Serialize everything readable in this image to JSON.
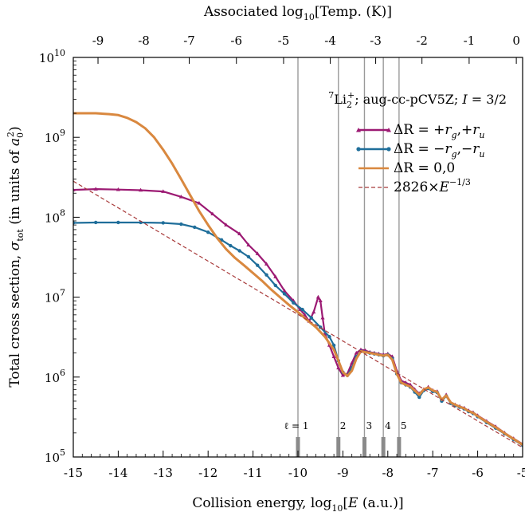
{
  "chart_data": {
    "type": "line",
    "annotation": "⁷Li₂⁺; aug-cc-pCV5Z; I = 3/2",
    "xlabel": "Collision energy, log₁₀[E (a.u.)]",
    "ylabel": "Total cross section, σ_tot (in units of a₀²)",
    "top_xlabel": "Associated log₁₀[Temp. (K)]",
    "xlim": [
      -15,
      -5
    ],
    "ylim": [
      100000,
      10000000000
    ],
    "yscale": "log",
    "grid": false,
    "legend_position": "upper-right",
    "x_ticks": [
      "-15",
      "-14",
      "-13",
      "-12",
      "-11",
      "-10",
      "-9",
      "-8",
      "-7",
      "-6",
      "-5"
    ],
    "y_ticks": [
      {
        "value": 100000,
        "base": "10",
        "exp": "5"
      },
      {
        "value": 1000000,
        "base": "10",
        "exp": "6"
      },
      {
        "value": 10000000,
        "base": "10",
        "exp": "7"
      },
      {
        "value": 100000000,
        "base": "10",
        "exp": "8"
      },
      {
        "value": 1000000000,
        "base": "10",
        "exp": "9"
      },
      {
        "value": 10000000000,
        "base": "10",
        "exp": "10"
      }
    ],
    "top_x_ticks": [
      "-9",
      "-8",
      "-7",
      "-6",
      "-5",
      "-4",
      "-3",
      "-2",
      "-1",
      "0"
    ],
    "top_x_tick_positions": [
      -14.45,
      -13.43,
      -12.42,
      -11.37,
      -10.32,
      -9.28,
      -8.27,
      -7.24,
      -6.19,
      -5.14
    ],
    "partial_wave_thresholds": [
      {
        "label": "ℓ = 1",
        "x": -10.0
      },
      {
        "label": "2",
        "x": -9.1
      },
      {
        "label": "3",
        "x": -8.52
      },
      {
        "label": "4",
        "x": -8.1
      },
      {
        "label": "5",
        "x": -7.75
      }
    ],
    "series": [
      {
        "name": "ΔR = +r_g,+r_u",
        "legend": {
          "lhs": "ΔR = +",
          "parts": [
            [
              "r",
              "g"
            ],
            [
              "r",
              "u"
            ]
          ],
          "sep": ",+"
        },
        "color": "#9c1a73",
        "marker": "triangle",
        "x": [
          -15,
          -14.5,
          -14,
          -13.5,
          -13,
          -12.6,
          -12.2,
          -11.9,
          -11.6,
          -11.3,
          -11.1,
          -10.9,
          -10.7,
          -10.5,
          -10.3,
          -10.1,
          -9.95,
          -9.85,
          -9.75,
          -9.65,
          -9.55,
          -9.5,
          -9.45,
          -9.4,
          -9.3,
          -9.2,
          -9.1,
          -9.0,
          -8.9,
          -8.8,
          -8.7,
          -8.6,
          -8.5,
          -8.4,
          -8.3,
          -8.2,
          -8.1,
          -8.0,
          -7.9,
          -7.8,
          -7.7,
          -7.6,
          -7.5,
          -7.4,
          -7.3,
          -7.2,
          -7.1,
          -7.0,
          -6.9,
          -6.8,
          -6.7,
          -6.6,
          -6.5,
          -6.4,
          -6.3,
          -6.2,
          -6.1,
          -6.0,
          -5.8,
          -5.6,
          -5.4,
          -5.2,
          -5.0
        ],
        "y": [
          220000000,
          225000000,
          222000000,
          218000000,
          210000000,
          180000000,
          150000000,
          110000000,
          80000000,
          62000000,
          45000000,
          35000000,
          26000000,
          18000000,
          12000000,
          9000000,
          7000000,
          6000000,
          5000000,
          6500000,
          10000000,
          9000000,
          5500000,
          3500000,
          2500000,
          1800000,
          1300000,
          1050000,
          1100000,
          1500000,
          2000000,
          2200000,
          2150000,
          2050000,
          2000000,
          1950000,
          1900000,
          1950000,
          1800000,
          1200000,
          900000,
          850000,
          800000,
          700000,
          620000,
          700000,
          750000,
          680000,
          660000,
          520000,
          600000,
          480000,
          450000,
          430000,
          410000,
          380000,
          360000,
          330000,
          280000,
          240000,
          200000,
          170000,
          145000
        ]
      },
      {
        "name": "ΔR = −r_g,−r_u",
        "legend": {
          "lhs": "ΔR = −",
          "parts": [
            [
              "r",
              "g"
            ],
            [
              "r",
              "u"
            ]
          ],
          "sep": ",−"
        },
        "color": "#1f6e9a",
        "marker": "circle",
        "x": [
          -15,
          -14.5,
          -14,
          -13.5,
          -13,
          -12.6,
          -12.3,
          -12.0,
          -11.7,
          -11.5,
          -11.3,
          -11.1,
          -10.9,
          -10.7,
          -10.5,
          -10.3,
          -10.1,
          -9.9,
          -9.7,
          -9.5,
          -9.3,
          -9.2,
          -9.1,
          -9.0,
          -8.9,
          -8.8,
          -8.7,
          -8.6,
          -8.5,
          -8.4,
          -8.3,
          -8.2,
          -8.1,
          -8.0,
          -7.9,
          -7.8,
          -7.7,
          -7.6,
          -7.5,
          -7.4,
          -7.3,
          -7.2,
          -7.1,
          -7.0,
          -6.9,
          -6.8,
          -6.7,
          -6.6,
          -6.5,
          -6.4,
          -6.3,
          -6.2,
          -6.1,
          -6.0,
          -5.8,
          -5.6,
          -5.4,
          -5.2,
          -5.0
        ],
        "y": [
          85000000,
          86000000,
          86000000,
          86000000,
          85000000,
          82000000,
          75000000,
          65000000,
          52000000,
          44000000,
          38000000,
          32000000,
          25000000,
          19000000,
          14000000,
          11000000,
          8500000,
          7000000,
          5500000,
          4200000,
          3200000,
          2500000,
          1600000,
          1150000,
          1050000,
          1300000,
          1800000,
          2100000,
          2050000,
          2000000,
          1950000,
          1900000,
          1850000,
          1900000,
          1700000,
          1100000,
          850000,
          800000,
          750000,
          650000,
          560000,
          680000,
          720000,
          660000,
          640000,
          500000,
          580000,
          470000,
          440000,
          420000,
          400000,
          370000,
          350000,
          320000,
          270000,
          230000,
          195000,
          165000,
          140000
        ]
      },
      {
        "name": "ΔR = 0,0",
        "legend": {
          "lhs": "ΔR =  0,0",
          "parts": [],
          "sep": ""
        },
        "color": "#d9883f",
        "marker": "none",
        "x": [
          -15,
          -14.5,
          -14.2,
          -14.0,
          -13.8,
          -13.6,
          -13.4,
          -13.2,
          -13.0,
          -12.8,
          -12.6,
          -12.4,
          -12.2,
          -12.0,
          -11.8,
          -11.6,
          -11.4,
          -11.2,
          -11.0,
          -10.8,
          -10.6,
          -10.4,
          -10.2,
          -10.0,
          -9.8,
          -9.6,
          -9.4,
          -9.2,
          -9.1,
          -9.0,
          -8.9,
          -8.8,
          -8.7,
          -8.6,
          -8.5,
          -8.4,
          -8.3,
          -8.2,
          -8.1,
          -8.0,
          -7.9,
          -7.8,
          -7.7,
          -7.6,
          -7.5,
          -7.4,
          -7.3,
          -7.2,
          -7.1,
          -7.0,
          -6.9,
          -6.8,
          -6.7,
          -6.6,
          -6.5,
          -6.4,
          -6.3,
          -6.2,
          -6.1,
          -6.0,
          -5.8,
          -5.6,
          -5.4,
          -5.2,
          -5.0
        ],
        "y": [
          2000000000,
          2000000000,
          1950000000,
          1900000000,
          1750000000,
          1550000000,
          1300000000,
          1000000000,
          700000000,
          470000000,
          300000000,
          190000000,
          120000000,
          80000000,
          55000000,
          40000000,
          31000000,
          25000000,
          20000000,
          16000000,
          12500000,
          10000000,
          8000000,
          6500000,
          5200000,
          4200000,
          3200000,
          2200000,
          1600000,
          1150000,
          1030000,
          1200000,
          1700000,
          2100000,
          2050000,
          2000000,
          1950000,
          1900000,
          1850000,
          1900000,
          1650000,
          1100000,
          850000,
          800000,
          760000,
          680000,
          600000,
          700000,
          740000,
          680000,
          650000,
          520000,
          590000,
          480000,
          450000,
          425000,
          405000,
          375000,
          355000,
          325000,
          275000,
          235000,
          198000,
          168000,
          142000
        ]
      },
      {
        "name": "2826×E^−1/3",
        "legend": {
          "lhs": "2826×",
          "power_base": "E",
          "power_exp": "−1/3"
        },
        "color": "#a83a3a",
        "marker": "none",
        "dashed": true,
        "x": [
          -15,
          -5
        ],
        "y": [
          282600000,
          131000
        ]
      }
    ]
  }
}
